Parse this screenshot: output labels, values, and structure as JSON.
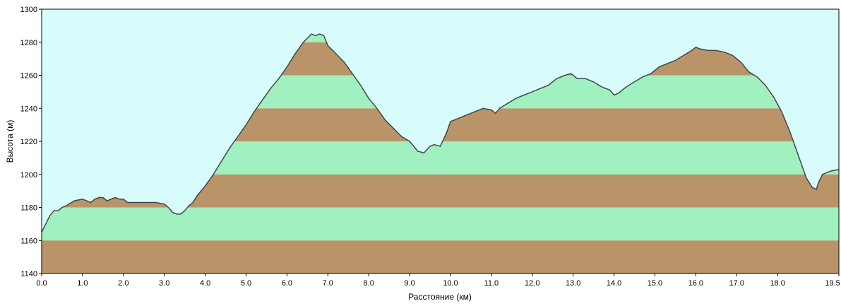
{
  "chart_data": {
    "type": "area",
    "title": "",
    "xlabel": "Расстояние  (км)",
    "ylabel": "Высота (м)",
    "xlim": [
      0,
      19.5
    ],
    "ylim": [
      1140,
      1300
    ],
    "x_ticks": [
      0.0,
      1.0,
      2.0,
      3.0,
      4.0,
      5.0,
      6.0,
      7.0,
      8.0,
      9.0,
      10.0,
      11.0,
      12.0,
      13.0,
      14.0,
      15.0,
      16.0,
      17.0,
      18.0,
      19.5
    ],
    "x_tick_labels": [
      "0.0",
      "1.0",
      "2.0",
      "3.0",
      "4.0",
      "5.0",
      "6.0",
      "7.0",
      "8.0",
      "9.0",
      "10.0",
      "11.0",
      "12.0",
      "13.0",
      "14.0",
      "15.0",
      "16.0",
      "17.0",
      "18.0",
      "19.5"
    ],
    "y_ticks": [
      1140,
      1160,
      1180,
      1200,
      1220,
      1240,
      1260,
      1280,
      1300
    ],
    "y_tick_labels": [
      "1140",
      "1160",
      "1180",
      "1200",
      "1220",
      "1240",
      "1260",
      "1280",
      "1300"
    ],
    "grid": false,
    "legend": "none",
    "colors": {
      "sky": "#d8fcfc",
      "band_brown": "#b89468",
      "band_green": "#a0f0c0",
      "profile_line": "#404848",
      "axis": "#000000"
    },
    "series": [
      {
        "x": [
          0.0,
          0.1,
          0.2,
          0.3,
          0.4,
          0.5,
          0.6,
          0.8,
          1.0,
          1.1,
          1.2,
          1.3,
          1.4,
          1.5,
          1.6,
          1.7,
          1.8,
          1.9,
          2.0,
          2.1,
          2.2,
          2.4,
          2.6,
          2.8,
          3.0,
          3.1,
          3.2,
          3.3,
          3.4,
          3.5,
          3.6,
          3.7,
          3.8,
          3.9,
          4.0,
          4.2,
          4.4,
          4.6,
          4.8,
          5.0,
          5.2,
          5.4,
          5.6,
          5.8,
          6.0,
          6.2,
          6.4,
          6.6,
          6.7,
          6.8,
          6.9,
          7.0,
          7.2,
          7.4,
          7.6,
          7.8,
          8.0,
          8.2,
          8.4,
          8.6,
          8.8,
          9.0,
          9.2,
          9.35,
          9.5,
          9.6,
          9.75,
          9.9,
          10.0,
          10.2,
          10.4,
          10.6,
          10.8,
          11.0,
          11.1,
          11.2,
          11.4,
          11.6,
          11.8,
          12.0,
          12.2,
          12.4,
          12.6,
          12.8,
          12.95,
          13.1,
          13.3,
          13.5,
          13.7,
          13.9,
          14.0,
          14.1,
          14.3,
          14.5,
          14.7,
          14.9,
          15.1,
          15.3,
          15.5,
          15.7,
          15.9,
          16.0,
          16.1,
          16.3,
          16.5,
          16.7,
          16.9,
          17.1,
          17.3,
          17.5,
          17.7,
          17.9,
          18.1,
          18.3,
          18.5,
          18.7,
          18.85,
          18.95,
          19.0,
          19.1,
          19.3,
          19.5
        ],
        "y": [
          1165,
          1170,
          1175,
          1178,
          1178,
          1180,
          1181,
          1184,
          1185,
          1184,
          1183,
          1185,
          1186,
          1186,
          1184,
          1185,
          1186,
          1185,
          1185,
          1183,
          1183,
          1183,
          1183,
          1183,
          1182,
          1180,
          1177,
          1176,
          1176,
          1178,
          1181,
          1183,
          1187,
          1190,
          1193,
          1200,
          1208,
          1216,
          1223,
          1230,
          1238,
          1245,
          1252,
          1258,
          1265,
          1273,
          1280,
          1285,
          1284,
          1285,
          1284,
          1278,
          1273,
          1268,
          1261,
          1254,
          1246,
          1240,
          1233,
          1228,
          1223,
          1220,
          1214,
          1213,
          1217,
          1218,
          1217,
          1225,
          1232,
          1234,
          1236,
          1238,
          1240,
          1239,
          1237,
          1240,
          1243,
          1246,
          1248,
          1250,
          1252,
          1254,
          1258,
          1260,
          1261,
          1258,
          1258,
          1256,
          1253,
          1251,
          1248,
          1249,
          1253,
          1256,
          1259,
          1261,
          1265,
          1267,
          1269,
          1272,
          1275,
          1277,
          1276,
          1275,
          1275,
          1274,
          1272,
          1268,
          1262,
          1259,
          1254,
          1247,
          1238,
          1226,
          1212,
          1198,
          1192,
          1191,
          1195,
          1200,
          1202,
          1203
        ]
      }
    ]
  }
}
